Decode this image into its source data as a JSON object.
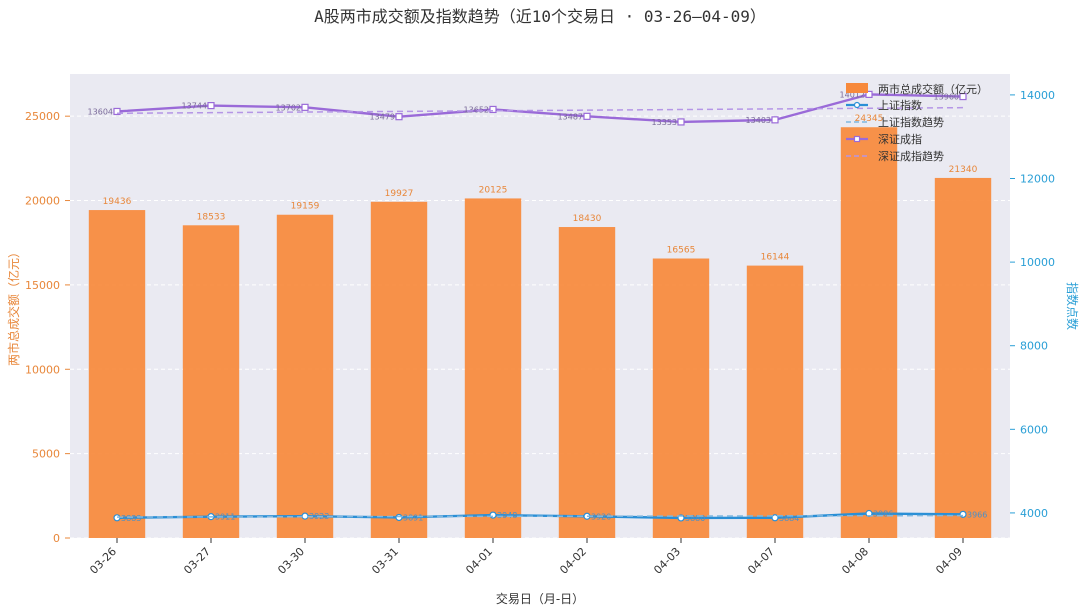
{
  "chart_data": {
    "type": "bar+line",
    "title": "A股两市成交额及指数趋势（近10个交易日 · 03-26—04-09）",
    "xlabel": "交易日（月-日）",
    "ylabel_left": "两市总成交额（亿元）",
    "ylabel_right": "指数点数",
    "categories": [
      "03-26",
      "03-27",
      "03-30",
      "03-31",
      "04-01",
      "04-02",
      "04-03",
      "04-07",
      "04-08",
      "04-09"
    ],
    "ylim_left": [
      0,
      27500
    ],
    "yticks_left": [
      0,
      5000,
      10000,
      15000,
      20000,
      25000
    ],
    "ylim_right": [
      3400,
      14500
    ],
    "yticks_right": [
      4000,
      6000,
      8000,
      10000,
      12000,
      14000
    ],
    "grid": true,
    "legend_position": "top-right",
    "bar_series": {
      "name": "两市总成交额（亿元）",
      "color": "#f7893b",
      "values": [
        19436,
        18533,
        19159,
        19927,
        20125,
        18430,
        16565,
        16144,
        24345,
        21340
      ],
      "labels": [
        "19436",
        "18533",
        "19159",
        "19927",
        "20125",
        "18430",
        "16565",
        "16144",
        "24345",
        "21340"
      ]
    },
    "line_series": [
      {
        "name": "上证指数",
        "color": "#2a8fd6",
        "style": "solid",
        "values": [
          3883,
          3911,
          3923,
          3891,
          3948,
          3920,
          3880,
          3884,
          3986,
          3966
        ],
        "labels": [
          "3883",
          "3911",
          "3923",
          "3891",
          "3948",
          "3920",
          "3880",
          "3884",
          "3986",
          "3966"
        ]
      },
      {
        "name": "上证指数趋势",
        "color": "#7fb7e0",
        "style": "dashed",
        "values": [
          3900,
          3905,
          3910,
          3914,
          3918,
          3921,
          3925,
          3928,
          3932,
          3936
        ]
      },
      {
        "name": "深证成指",
        "color": "#9a6ad8",
        "style": "solid",
        "values": [
          13604,
          13744,
          13702,
          13479,
          13652,
          13487,
          13353,
          13403,
          14012,
          13960
        ],
        "labels": [
          "13604",
          "13744",
          "13702",
          "13479",
          "13652",
          "13487",
          "13353",
          "13403",
          "14012",
          "13960"
        ]
      },
      {
        "name": "深证成指趋势",
        "color": "#b596e6",
        "style": "dashed",
        "values": [
          13560,
          13575,
          13590,
          13605,
          13620,
          13635,
          13650,
          13665,
          13680,
          13695
        ]
      }
    ]
  }
}
